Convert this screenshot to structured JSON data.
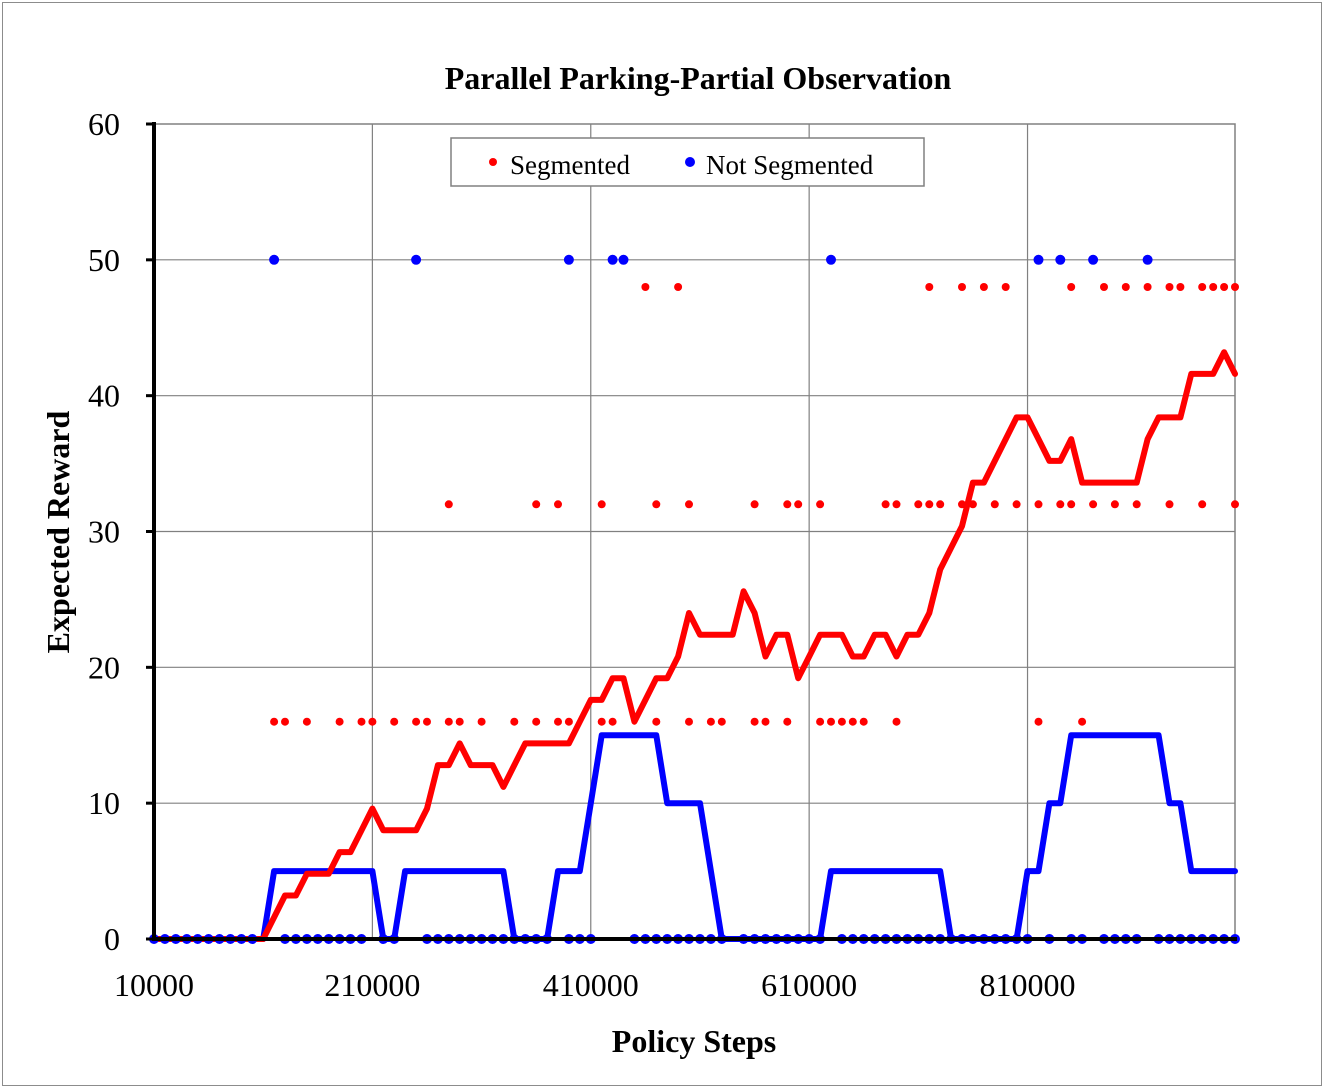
{
  "chart_data": {
    "type": "line",
    "title": "Parallel Parking-Partial Observation",
    "xlabel": "Policy Steps",
    "ylabel": "Expected Reward",
    "x_ticks": [
      "10000",
      "210000",
      "410000",
      "610000",
      "810000"
    ],
    "y_ticks": [
      "0",
      "10",
      "20",
      "30",
      "40",
      "50",
      "60"
    ],
    "xlim": [
      10000,
      1000000
    ],
    "ylim": [
      0,
      60
    ],
    "grid": true,
    "legend": "top-center",
    "series": [
      {
        "name": "Segmented",
        "color": "#ff0000",
        "line": {
          "x": [
            10000,
            110000,
            120000,
            130000,
            140000,
            150000,
            160000,
            170000,
            180000,
            190000,
            200000,
            210000,
            220000,
            230000,
            240000,
            250000,
            260000,
            270000,
            280000,
            290000,
            300000,
            310000,
            320000,
            330000,
            340000,
            350000,
            360000,
            370000,
            380000,
            390000,
            400000,
            410000,
            420000,
            430000,
            440000,
            450000,
            460000,
            470000,
            480000,
            490000,
            500000,
            510000,
            520000,
            530000,
            540000,
            550000,
            560000,
            570000,
            580000,
            590000,
            600000,
            610000,
            620000,
            630000,
            640000,
            650000,
            660000,
            670000,
            680000,
            690000,
            700000,
            710000,
            720000,
            730000,
            740000,
            750000,
            760000,
            770000,
            780000,
            790000,
            800000,
            810000,
            820000,
            830000,
            840000,
            850000,
            860000,
            870000,
            880000,
            890000,
            900000,
            910000,
            920000,
            930000,
            940000,
            950000,
            960000,
            970000,
            980000,
            990000,
            1000000
          ],
          "y": [
            0,
            0,
            1.6,
            3.2,
            3.2,
            4.8,
            4.8,
            4.8,
            6.4,
            6.4,
            8.0,
            9.6,
            8.0,
            8.0,
            8.0,
            8.0,
            9.6,
            12.8,
            12.8,
            14.4,
            12.8,
            12.8,
            12.8,
            11.2,
            12.8,
            14.4,
            14.4,
            14.4,
            14.4,
            14.4,
            16.0,
            17.6,
            17.6,
            19.2,
            19.2,
            16.0,
            17.6,
            19.2,
            19.2,
            20.8,
            24.0,
            22.4,
            22.4,
            22.4,
            22.4,
            25.6,
            24.0,
            20.8,
            22.4,
            22.4,
            19.2,
            20.8,
            22.4,
            22.4,
            22.4,
            20.8,
            20.8,
            22.4,
            22.4,
            20.8,
            22.4,
            22.4,
            24.0,
            27.2,
            28.8,
            30.4,
            33.6,
            33.6,
            35.2,
            36.8,
            38.4,
            38.4,
            36.8,
            35.2,
            35.2,
            36.8,
            33.6,
            33.6,
            33.6,
            33.6,
            33.6,
            33.6,
            36.8,
            38.4,
            38.4,
            38.4,
            41.6,
            41.6,
            41.6,
            43.2,
            41.6
          ]
        },
        "points": {
          "x": [
            120000,
            130000,
            150000,
            180000,
            200000,
            210000,
            230000,
            250000,
            260000,
            280000,
            290000,
            310000,
            340000,
            360000,
            380000,
            390000,
            420000,
            430000,
            470000,
            500000,
            520000,
            530000,
            560000,
            570000,
            590000,
            620000,
            630000,
            640000,
            650000,
            660000,
            690000,
            280000,
            360000,
            380000,
            420000,
            470000,
            500000,
            560000,
            590000,
            600000,
            620000,
            680000,
            690000,
            710000,
            720000,
            730000,
            750000,
            760000,
            780000,
            800000,
            820000,
            840000,
            850000,
            870000,
            890000,
            910000,
            940000,
            970000,
            1000000,
            460000,
            490000,
            720000,
            750000,
            770000,
            790000,
            850000,
            880000,
            900000,
            920000,
            940000,
            950000,
            970000,
            980000,
            990000,
            1000000,
            820000,
            860000
          ],
          "y": [
            16,
            16,
            16,
            16,
            16,
            16,
            16,
            16,
            16,
            16,
            16,
            16,
            16,
            16,
            16,
            16,
            16,
            16,
            16,
            16,
            16,
            16,
            16,
            16,
            16,
            16,
            16,
            16,
            16,
            16,
            16,
            32,
            32,
            32,
            32,
            32,
            32,
            32,
            32,
            32,
            32,
            32,
            32,
            32,
            32,
            32,
            32,
            32,
            32,
            32,
            32,
            32,
            32,
            32,
            32,
            32,
            32,
            32,
            32,
            48,
            48,
            48,
            48,
            48,
            48,
            48,
            48,
            48,
            48,
            48,
            48,
            48,
            48,
            48,
            48,
            16,
            16
          ]
        }
      },
      {
        "name": "Not Segmented",
        "color": "#0000ff",
        "line": {
          "x": [
            10000,
            110000,
            120000,
            130000,
            200000,
            210000,
            220000,
            230000,
            240000,
            330000,
            340000,
            350000,
            370000,
            380000,
            390000,
            400000,
            410000,
            420000,
            430000,
            470000,
            480000,
            490000,
            510000,
            520000,
            530000,
            620000,
            630000,
            640000,
            730000,
            740000,
            800000,
            810000,
            820000,
            830000,
            840000,
            850000,
            860000,
            870000,
            930000,
            940000,
            950000,
            960000,
            970000,
            980000,
            1000000
          ],
          "y": [
            0,
            0,
            5,
            5,
            5,
            5,
            0,
            0,
            5,
            5,
            0,
            0,
            0,
            5,
            5,
            5,
            10,
            15,
            15,
            15,
            10,
            10,
            10,
            5,
            0,
            0,
            5,
            5,
            5,
            0,
            0,
            5,
            5,
            10,
            10,
            15,
            15,
            15,
            15,
            10,
            10,
            5,
            5,
            5,
            5
          ]
        },
        "points": {
          "x": [
            10000,
            20000,
            30000,
            40000,
            50000,
            60000,
            70000,
            80000,
            90000,
            100000,
            130000,
            140000,
            150000,
            160000,
            170000,
            180000,
            190000,
            200000,
            220000,
            230000,
            260000,
            270000,
            280000,
            290000,
            300000,
            310000,
            320000,
            330000,
            340000,
            350000,
            360000,
            370000,
            390000,
            400000,
            410000,
            450000,
            460000,
            470000,
            480000,
            490000,
            500000,
            510000,
            520000,
            530000,
            550000,
            560000,
            570000,
            580000,
            590000,
            600000,
            610000,
            620000,
            640000,
            650000,
            660000,
            670000,
            680000,
            690000,
            700000,
            710000,
            720000,
            730000,
            740000,
            750000,
            760000,
            770000,
            780000,
            790000,
            800000,
            810000,
            830000,
            850000,
            860000,
            880000,
            890000,
            900000,
            910000,
            930000,
            940000,
            950000,
            960000,
            970000,
            980000,
            990000,
            1000000,
            120000,
            250000,
            390000,
            430000,
            440000,
            630000,
            820000,
            840000,
            870000,
            920000
          ],
          "y": [
            0,
            0,
            0,
            0,
            0,
            0,
            0,
            0,
            0,
            0,
            0,
            0,
            0,
            0,
            0,
            0,
            0,
            0,
            0,
            0,
            0,
            0,
            0,
            0,
            0,
            0,
            0,
            0,
            0,
            0,
            0,
            0,
            0,
            0,
            0,
            0,
            0,
            0,
            0,
            0,
            0,
            0,
            0,
            0,
            0,
            0,
            0,
            0,
            0,
            0,
            0,
            0,
            0,
            0,
            0,
            0,
            0,
            0,
            0,
            0,
            0,
            0,
            0,
            0,
            0,
            0,
            0,
            0,
            0,
            0,
            0,
            0,
            0,
            0,
            0,
            0,
            0,
            0,
            0,
            0,
            0,
            0,
            0,
            0,
            0,
            50,
            50,
            50,
            50,
            50,
            50,
            50,
            50,
            50,
            50
          ]
        }
      }
    ]
  }
}
